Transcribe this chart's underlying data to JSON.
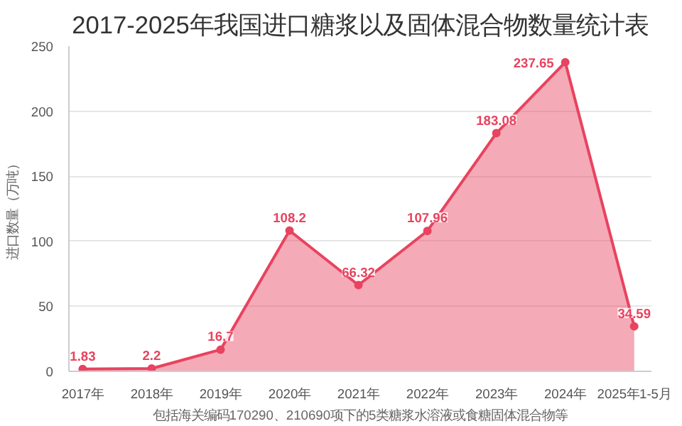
{
  "chart_data": {
    "type": "area",
    "title": "2017-2025年我国进口糖浆以及固体混合物数量统计表",
    "categories": [
      "2017年",
      "2018年",
      "2019年",
      "2020年",
      "2021年",
      "2022年",
      "2023年",
      "2024年",
      "2025年1-5月"
    ],
    "series": [
      {
        "color": "#e8435f",
        "values": [
          1.83,
          2.2,
          16.7,
          108.2,
          66.32,
          107.96,
          183.08,
          237.65,
          34.59
        ]
      }
    ],
    "ylabel": "进口数量（万吨）",
    "xlabel": "包括海关编码170290、210690项下的5类糖浆水溶液或食糖固体混合物等",
    "ylim": [
      0,
      250
    ],
    "yticks": [
      0,
      50,
      100,
      150,
      200,
      250
    ],
    "grid": "y",
    "marker": "circle",
    "data_labels": true
  }
}
